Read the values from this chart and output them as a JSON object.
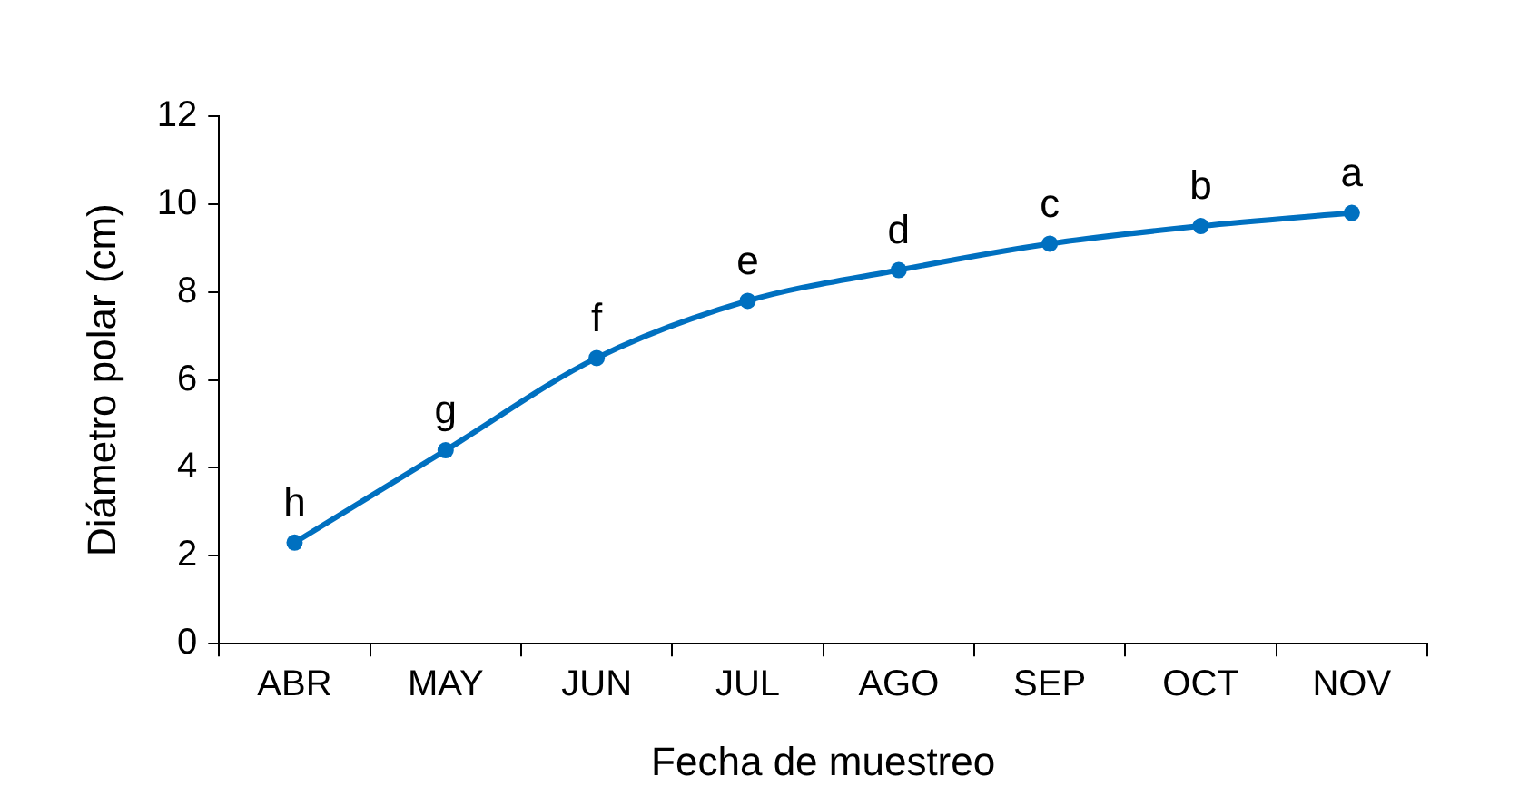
{
  "chart_data": {
    "type": "line",
    "xlabel": "Fecha de muestreo",
    "ylabel": "Diámetro polar (cm)",
    "categories": [
      "ABR",
      "MAY",
      "JUN",
      "JUL",
      "AGO",
      "SEP",
      "OCT",
      "NOV"
    ],
    "series": [
      {
        "color": "#0070c0",
        "values": [
          2.3,
          4.4,
          6.5,
          7.8,
          8.5,
          9.1,
          9.5,
          9.8
        ]
      }
    ],
    "ylim": [
      0,
      12
    ],
    "yticks": [
      0,
      2,
      4,
      6,
      8,
      10,
      12
    ],
    "grid": false,
    "legend": false,
    "marker": "circle",
    "line_style": "solid",
    "annotations": [
      {
        "text": "h",
        "x": "ABR",
        "y": 2.3
      },
      {
        "text": "g",
        "x": "MAY",
        "y": 4.4
      },
      {
        "text": "f",
        "x": "JUN",
        "y": 6.5
      },
      {
        "text": "e",
        "x": "JUL",
        "y": 7.8
      },
      {
        "text": "d",
        "x": "AGO",
        "y": 8.5
      },
      {
        "text": "c",
        "x": "SEP",
        "y": 9.1
      },
      {
        "text": "b",
        "x": "OCT",
        "y": 9.5
      },
      {
        "text": "a",
        "x": "NOV",
        "y": 9.8
      }
    ]
  }
}
